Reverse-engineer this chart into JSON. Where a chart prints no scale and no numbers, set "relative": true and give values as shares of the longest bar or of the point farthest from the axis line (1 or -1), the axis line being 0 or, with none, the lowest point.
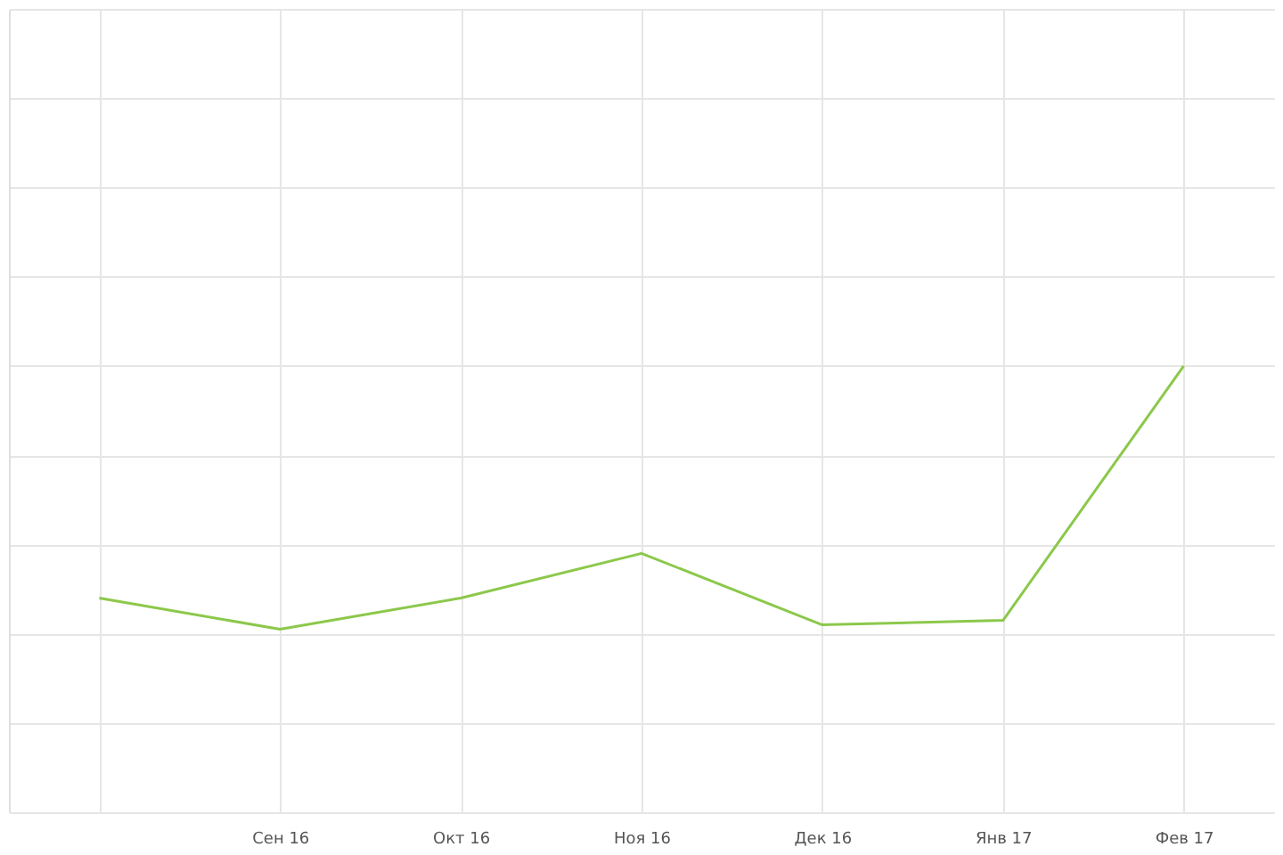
{
  "chart_data": {
    "type": "line",
    "relative": true,
    "grid": true,
    "marker": "none",
    "line_style": "solid",
    "categories": [
      null,
      "Сен 16",
      "Окт 16",
      "Ноя 16",
      "Дек 16",
      "Янв 17",
      "Фев 17"
    ],
    "series": [
      {
        "color": "#8cc84b",
        "values": [
          0.48,
          0.41,
          0.48,
          0.58,
          0.42,
          0.43,
          1.0
        ]
      }
    ]
  }
}
